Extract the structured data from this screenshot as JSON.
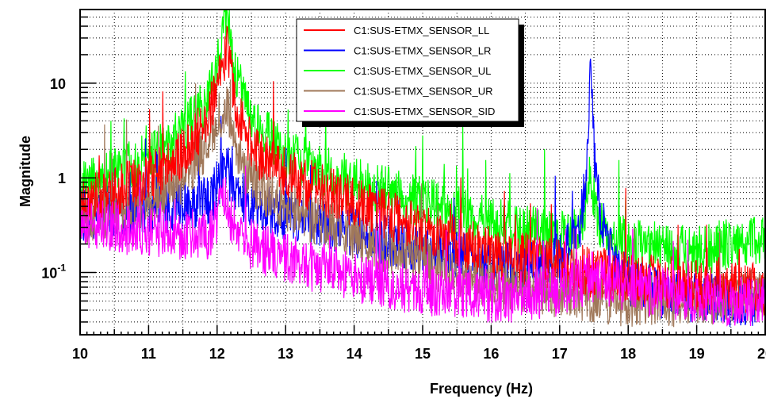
{
  "chart_data": {
    "type": "line",
    "title": "",
    "xlabel": "Frequency (Hz)",
    "ylabel": "Magnitude",
    "x_scale": "linear",
    "y_scale": "log",
    "xlim": [
      10,
      20
    ],
    "ylim": [
      0.022,
      60
    ],
    "grid": true,
    "legend_position": "top-center",
    "x_ticks": [
      10,
      11,
      12,
      13,
      14,
      15,
      16,
      17,
      18,
      19,
      20
    ],
    "x_tick_labels": [
      "10",
      "11",
      "12",
      "13",
      "14",
      "15",
      "16",
      "17",
      "18",
      "19",
      "20"
    ],
    "y_ticks": [
      {
        "value": 0.1,
        "base": "10",
        "exp": "-1"
      },
      {
        "value": 1,
        "base": "1",
        "exp": ""
      },
      {
        "value": 10,
        "base": "10",
        "exp": ""
      }
    ],
    "series": [
      {
        "name": "C1:SUS-ETMX_SENSOR_LL",
        "color": "#ff0000",
        "x": [
          10.0,
          10.5,
          11.0,
          11.5,
          11.8,
          12.0,
          12.1,
          12.15,
          12.25,
          12.4,
          12.6,
          13.0,
          13.5,
          14.0,
          14.5,
          15.0,
          15.5,
          16.0,
          16.5,
          17.0,
          17.5,
          18.0,
          18.5,
          19.0,
          19.5,
          20.0
        ],
        "values": [
          0.55,
          0.7,
          1.0,
          1.8,
          3.5,
          8.0,
          18.0,
          25.0,
          7.0,
          3.0,
          1.8,
          1.1,
          0.75,
          0.55,
          0.4,
          0.3,
          0.22,
          0.16,
          0.14,
          0.12,
          0.1,
          0.09,
          0.08,
          0.075,
          0.07,
          0.065
        ]
      },
      {
        "name": "C1:SUS-ETMX_SENSOR_LR",
        "color": "#0000ff",
        "x": [
          10.0,
          10.5,
          11.0,
          11.5,
          11.9,
          12.05,
          12.12,
          12.2,
          12.4,
          12.6,
          13.0,
          13.5,
          14.0,
          14.5,
          15.0,
          15.5,
          16.0,
          16.5,
          17.0,
          17.3,
          17.4,
          17.45,
          17.5,
          17.6,
          17.8,
          18.0,
          18.5,
          19.0,
          19.5,
          20.0
        ],
        "values": [
          0.4,
          0.45,
          0.48,
          0.5,
          0.55,
          1.0,
          1.5,
          0.9,
          0.6,
          0.5,
          0.4,
          0.33,
          0.27,
          0.22,
          0.18,
          0.15,
          0.12,
          0.11,
          0.14,
          0.3,
          1.5,
          19.0,
          2.0,
          0.4,
          0.12,
          0.08,
          0.06,
          0.055,
          0.05,
          0.05
        ]
      },
      {
        "name": "C1:SUS-ETMX_SENSOR_UL",
        "color": "#00ff00",
        "x": [
          10.0,
          10.5,
          11.0,
          11.5,
          11.8,
          12.0,
          12.1,
          12.15,
          12.25,
          12.4,
          12.6,
          13.0,
          13.5,
          14.0,
          14.5,
          15.0,
          15.5,
          16.0,
          16.5,
          17.0,
          17.3,
          17.45,
          17.6,
          18.0,
          18.5,
          19.0,
          19.5,
          20.0
        ],
        "values": [
          0.8,
          1.1,
          1.6,
          3.0,
          6.0,
          15.0,
          35.0,
          55.0,
          15.0,
          6.0,
          3.5,
          1.8,
          1.2,
          0.9,
          0.7,
          0.55,
          0.45,
          0.35,
          0.28,
          0.25,
          0.3,
          1.0,
          0.3,
          0.2,
          0.18,
          0.17,
          0.2,
          0.22
        ]
      },
      {
        "name": "C1:SUS-ETMX_SENSOR_UR",
        "color": "#a0785a",
        "x": [
          10.0,
          10.5,
          11.0,
          11.5,
          11.8,
          12.0,
          12.1,
          12.15,
          12.25,
          12.4,
          12.6,
          13.0,
          13.5,
          14.0,
          14.5,
          15.0,
          15.5,
          16.0,
          16.5,
          17.0,
          17.5,
          18.0,
          18.5,
          19.0,
          19.5,
          20.0
        ],
        "values": [
          0.35,
          0.45,
          0.6,
          1.0,
          2.0,
          4.0,
          5.0,
          6.0,
          2.5,
          1.2,
          0.8,
          0.5,
          0.35,
          0.25,
          0.18,
          0.13,
          0.1,
          0.08,
          0.07,
          0.06,
          0.055,
          0.05,
          0.05,
          0.05,
          0.055,
          0.06
        ]
      },
      {
        "name": "C1:SUS-ETMX_SENSOR_SID",
        "color": "#ff00ff",
        "x": [
          10.0,
          10.5,
          11.0,
          11.5,
          11.9,
          12.05,
          12.12,
          12.2,
          12.4,
          12.6,
          13.0,
          13.5,
          14.0,
          14.5,
          15.0,
          15.5,
          16.0,
          16.5,
          17.0,
          17.5,
          18.0,
          18.5,
          19.0,
          19.5,
          20.0
        ],
        "values": [
          0.35,
          0.3,
          0.27,
          0.25,
          0.26,
          0.45,
          0.6,
          0.35,
          0.22,
          0.18,
          0.14,
          0.11,
          0.09,
          0.075,
          0.065,
          0.06,
          0.055,
          0.055,
          0.065,
          0.09,
          0.07,
          0.06,
          0.055,
          0.05,
          0.05
        ]
      }
    ]
  }
}
